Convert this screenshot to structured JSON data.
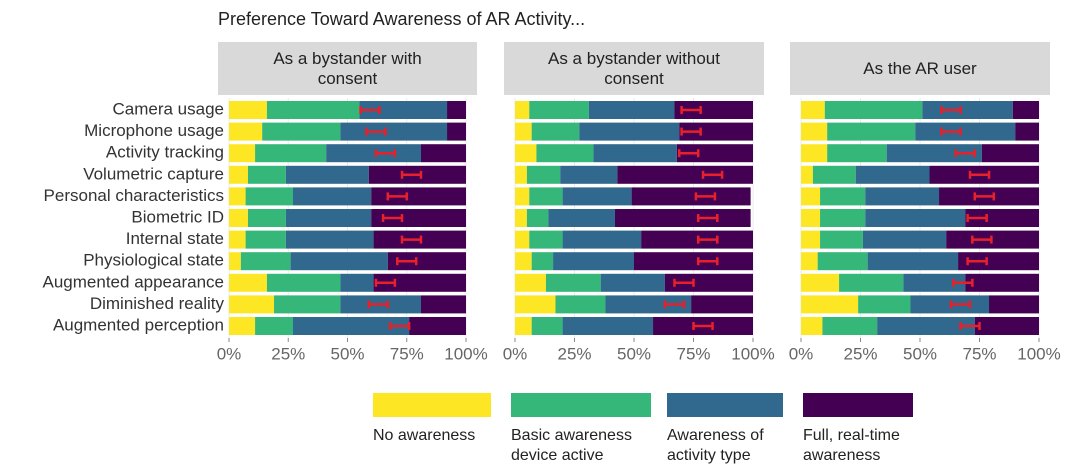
{
  "chart_data": {
    "type": "bar",
    "orientation": "horizontal",
    "stacked": true,
    "title": "Preference Toward Awareness of AR Activity...",
    "categories": [
      "Camera usage",
      "Microphone usage",
      "Activity tracking",
      "Volumetric capture",
      "Personal characteristics",
      "Biometric ID",
      "Internal state",
      "Physiological state",
      "Augmented appearance",
      "Diminished reality",
      "Augmented perception"
    ],
    "series": [
      {
        "name": "No awareness",
        "color": "#fde725"
      },
      {
        "name": "Basic awareness device active",
        "color": "#35b779"
      },
      {
        "name": "Awareness of activity type",
        "color": "#31688e"
      },
      {
        "name": "Full, real-time awareness",
        "color": "#440154"
      }
    ],
    "error_color": "#e8202a",
    "xlim": [
      0,
      100
    ],
    "xticks": [
      {
        "value": 0,
        "label": "0%"
      },
      {
        "value": 25,
        "label": "25%"
      },
      {
        "value": 50,
        "label": "50%"
      },
      {
        "value": 75,
        "label": "75%"
      },
      {
        "value": 100,
        "label": "100%"
      }
    ],
    "facets": [
      {
        "title": "As a bystander with consent",
        "values": [
          [
            16,
            14,
            11,
            8,
            7,
            8,
            7,
            5,
            16,
            19,
            11
          ],
          [
            39,
            33,
            30,
            16,
            20,
            16,
            17,
            21,
            31,
            28,
            16
          ],
          [
            37,
            45,
            40,
            35,
            33,
            36,
            37,
            41,
            14,
            34,
            49
          ],
          [
            8,
            8,
            19,
            41,
            40,
            40,
            39,
            33,
            39,
            19,
            24
          ]
        ],
        "error_center": [
          59.5,
          62,
          66,
          77,
          71,
          69,
          77,
          75,
          66,
          63,
          72
        ],
        "error": [
          4,
          4,
          4,
          4,
          4,
          4,
          4,
          4,
          4,
          4,
          4
        ]
      },
      {
        "title": "As a bystander without consent",
        "values": [
          [
            6,
            7,
            9,
            5,
            6,
            5,
            6,
            7,
            13,
            17,
            7
          ],
          [
            25,
            20,
            24,
            14,
            14,
            9,
            14,
            9,
            23,
            21,
            13
          ],
          [
            36,
            42,
            35,
            24,
            29,
            28,
            33,
            34,
            27,
            36,
            38
          ],
          [
            33,
            31,
            32,
            57,
            50,
            57,
            47,
            50,
            37,
            26,
            42
          ]
        ],
        "error_center": [
          74,
          74,
          73,
          83,
          80,
          81,
          81,
          81,
          71,
          67,
          79
        ],
        "error": [
          4,
          4,
          4,
          4,
          4,
          4,
          4,
          4,
          4,
          4,
          4
        ]
      },
      {
        "title": "As the AR user",
        "values": [
          [
            10,
            11,
            11,
            5,
            8,
            8,
            8,
            7,
            16,
            24,
            9
          ],
          [
            41,
            37,
            25,
            18,
            19,
            19,
            18,
            21,
            27,
            22,
            23
          ],
          [
            38,
            42,
            40,
            31,
            31,
            42,
            35,
            38,
            26,
            33,
            41
          ],
          [
            11,
            10,
            24,
            46,
            42,
            31,
            39,
            34,
            31,
            21,
            27
          ]
        ],
        "error_center": [
          63,
          63,
          69,
          75,
          77,
          74,
          76,
          74,
          68,
          67,
          71
        ],
        "error": [
          4,
          4,
          4,
          4,
          4,
          4,
          4,
          4,
          4,
          4,
          4
        ]
      }
    ]
  }
}
